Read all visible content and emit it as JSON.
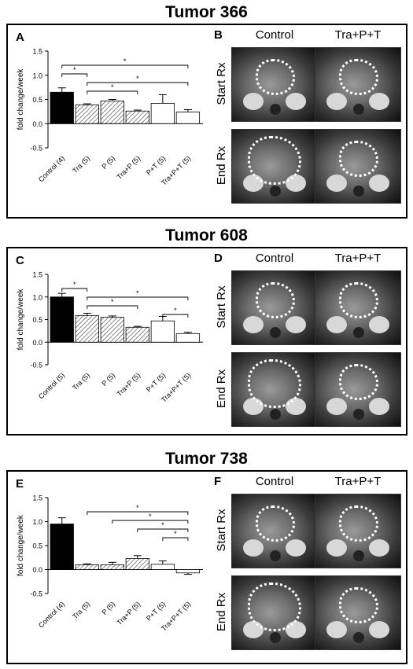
{
  "tumors": [
    {
      "title": "Tumor 366",
      "chart_letter": "A",
      "image_letter": "B",
      "ylabel": "fold change/week",
      "yticks": [
        "1.5",
        "1.0",
        "0.5",
        "0.0",
        "-0.5"
      ],
      "ylim": [
        -0.5,
        1.5
      ],
      "categories": [
        "Control (4)",
        "Tra (5)",
        "P (5)",
        "Tra+P (5)",
        "P+T (5)",
        "Tra+P+T (5)"
      ],
      "values": [
        0.65,
        0.39,
        0.47,
        0.26,
        0.42,
        0.24
      ],
      "errors": [
        0.09,
        0.02,
        0.03,
        0.02,
        0.18,
        0.05
      ],
      "significance": [
        {
          "from": 0,
          "to": 5,
          "label": "*"
        },
        {
          "from": 0,
          "to": 1,
          "label": "*"
        },
        {
          "from": 1,
          "to": 5,
          "label": "*"
        },
        {
          "from": 1,
          "to": 3,
          "label": "*"
        }
      ],
      "image_columns": [
        "Control",
        "Tra+P+T"
      ],
      "image_rows": [
        "Start Rx",
        "End Rx"
      ]
    },
    {
      "title": "Tumor 608",
      "chart_letter": "C",
      "image_letter": "D",
      "ylabel": "fold change/week",
      "yticks": [
        "1.5",
        "1.0",
        "0.5",
        "0.0",
        "-0.5"
      ],
      "ylim": [
        -0.5,
        1.5
      ],
      "categories": [
        "Control (5)",
        "Tra (5)",
        "P (5)",
        "Tra+P (5)",
        "P+T (5)",
        "Tra+P+T (5)"
      ],
      "values": [
        1.0,
        0.59,
        0.55,
        0.33,
        0.47,
        0.19
      ],
      "errors": [
        0.08,
        0.05,
        0.03,
        0.02,
        0.1,
        0.03
      ],
      "significance": [
        {
          "from": 0,
          "to": 1,
          "label": "*"
        },
        {
          "from": 1,
          "to": 5,
          "label": "*"
        },
        {
          "from": 1,
          "to": 3,
          "label": "*"
        },
        {
          "from": 4,
          "to": 5,
          "label": "*"
        }
      ],
      "image_columns": [
        "Control",
        "Tra+P+T"
      ],
      "image_rows": [
        "Start Rx",
        "End Rx"
      ]
    },
    {
      "title": "Tumor 738",
      "chart_letter": "E",
      "image_letter": "F",
      "ylabel": "fold change/week",
      "yticks": [
        "1.5",
        "1.0",
        "0.5",
        "0.0",
        "-0.5"
      ],
      "ylim": [
        -0.5,
        1.5
      ],
      "categories": [
        "Control (4)",
        "Tra (5)",
        "P (5)",
        "Tra+P (5)",
        "P+T (5)",
        "Tra+P+T (5)"
      ],
      "values": [
        0.95,
        0.1,
        0.1,
        0.23,
        0.11,
        -0.07
      ],
      "errors": [
        0.13,
        0.02,
        0.05,
        0.06,
        0.07,
        0.03
      ],
      "significance": [
        {
          "from": 1,
          "to": 5,
          "label": "*"
        },
        {
          "from": 2,
          "to": 5,
          "label": "*"
        },
        {
          "from": 3,
          "to": 5,
          "label": "*"
        },
        {
          "from": 4,
          "to": 5,
          "label": "*"
        }
      ],
      "image_columns": [
        "Control",
        "Tra+P+T"
      ],
      "image_rows": [
        "Start Rx",
        "End Rx"
      ]
    }
  ],
  "chart_data": [
    {
      "type": "bar",
      "title": "Tumor 366",
      "ylabel": "fold change/week",
      "ylim": [
        -0.5,
        1.5
      ],
      "categories": [
        "Control (4)",
        "Tra (5)",
        "P (5)",
        "Tra+P (5)",
        "P+T (5)",
        "Tra+P+T (5)"
      ],
      "values": [
        0.65,
        0.39,
        0.47,
        0.26,
        0.42,
        0.24
      ],
      "errors": [
        0.09,
        0.02,
        0.03,
        0.02,
        0.18,
        0.05
      ]
    },
    {
      "type": "bar",
      "title": "Tumor 608",
      "ylabel": "fold change/week",
      "ylim": [
        -0.5,
        1.5
      ],
      "categories": [
        "Control (5)",
        "Tra (5)",
        "P (5)",
        "Tra+P (5)",
        "P+T (5)",
        "Tra+P+T (5)"
      ],
      "values": [
        1.0,
        0.59,
        0.55,
        0.33,
        0.47,
        0.19
      ],
      "errors": [
        0.08,
        0.05,
        0.03,
        0.02,
        0.1,
        0.03
      ]
    },
    {
      "type": "bar",
      "title": "Tumor 738",
      "ylabel": "fold change/week",
      "ylim": [
        -0.5,
        1.5
      ],
      "categories": [
        "Control (4)",
        "Tra (5)",
        "P (5)",
        "Tra+P (5)",
        "P+T (5)",
        "Tra+P+T (5)"
      ],
      "values": [
        0.95,
        0.1,
        0.1,
        0.23,
        0.11,
        -0.07
      ],
      "errors": [
        0.13,
        0.02,
        0.05,
        0.06,
        0.07,
        0.03
      ]
    }
  ],
  "bar_fills": [
    "solid",
    "hatch",
    "hatch",
    "hatch",
    "white",
    "white"
  ]
}
